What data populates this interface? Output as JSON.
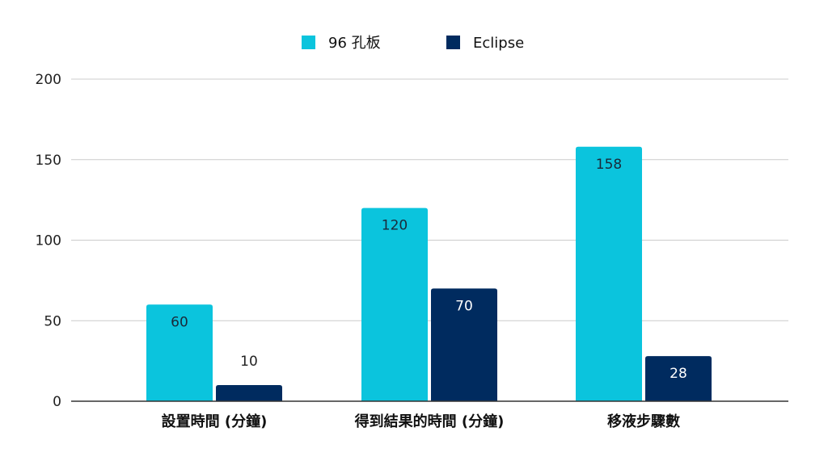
{
  "chart_data": {
    "type": "bar",
    "title": "",
    "xlabel": "",
    "ylabel": "",
    "categories": [
      "設置時間 (分鐘)",
      "得到結果的時間 (分鐘)",
      "移液步驟數"
    ],
    "series": [
      {
        "name": "96 孔板",
        "values": [
          60,
          120,
          158
        ],
        "color": "#0bc4dd",
        "label_color": "#1a2a3a"
      },
      {
        "name": "Eclipse",
        "values": [
          10,
          70,
          28
        ],
        "color": "#002b5f",
        "label_color": "#ffffff"
      }
    ],
    "ylim": [
      0,
      200
    ],
    "yticks": [
      0,
      50,
      100,
      150,
      200
    ],
    "grid": true,
    "legend_position": "top-center",
    "colors": {
      "gridline": "#cccccc",
      "axis": "#333333"
    }
  }
}
